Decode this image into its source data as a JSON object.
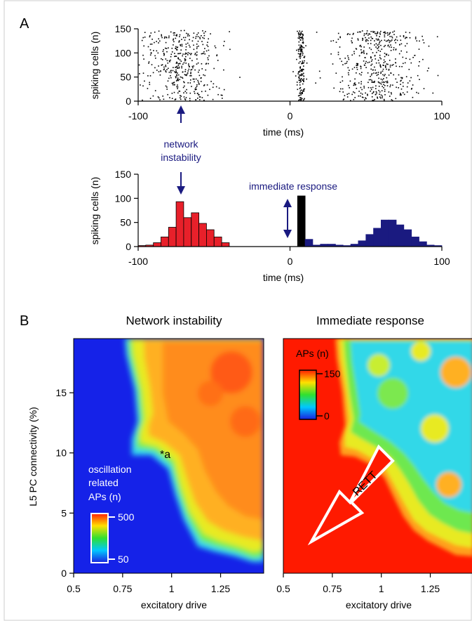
{
  "panel_labels": {
    "a": "A",
    "b": "B"
  },
  "colors": {
    "axis": "#000000",
    "annotation": "#1a1a80",
    "instability_bar": "#e8202a",
    "response_bar": "#1a1a80",
    "immediate_bar": "#000000",
    "heat_low": "#1020e0",
    "heat_high": "#ff1a00"
  },
  "annotations": {
    "network_instability_line1": "network",
    "network_instability_line2": "instability",
    "immediate_response": "immediate response",
    "point_a": "*a",
    "oscillation_line1": "oscillation",
    "oscillation_line2": "related",
    "oscillation_line3": "APs (n)",
    "aps_label": "APs (n)",
    "rett": "RETT"
  },
  "chart_data": [
    {
      "id": "raster",
      "type": "scatter",
      "xlabel": "time (ms)",
      "ylabel": "spiking cells (n)",
      "xlim": [
        -100,
        100
      ],
      "ylim": [
        0,
        150
      ],
      "xticks": [
        "-100",
        "0",
        "100"
      ],
      "yticks": [
        "0",
        "50",
        "100",
        "150"
      ],
      "groups": [
        {
          "x_center": -72,
          "x_sd": 12,
          "count": 430
        },
        {
          "x_center": 7,
          "x_sd": 1.2,
          "count": 170
        },
        {
          "x_center": 58,
          "x_sd": 14,
          "count": 480
        }
      ]
    },
    {
      "id": "histogram",
      "type": "bar",
      "xlabel": "time (ms)",
      "ylabel": "spiking cells (n)",
      "xlim": [
        -100,
        100
      ],
      "ylim": [
        0,
        150
      ],
      "xticks": [
        "-100",
        "0",
        "100"
      ],
      "yticks": [
        "0",
        "50",
        "100",
        "150"
      ],
      "bin_width": 5,
      "series": [
        {
          "group": "instability",
          "x": [
            -100,
            -95,
            -90,
            -85,
            -80,
            -75,
            -70,
            -65,
            -60,
            -55,
            -50,
            -45
          ],
          "values": [
            2,
            3,
            8,
            20,
            40,
            93,
            60,
            70,
            48,
            35,
            20,
            8
          ]
        },
        {
          "group": "immediate",
          "x": [
            5
          ],
          "values": [
            105
          ]
        },
        {
          "group": "response",
          "x": [
            10,
            15,
            20,
            25,
            30,
            35,
            40,
            45,
            50,
            55,
            60,
            65,
            70,
            75,
            80,
            85,
            90,
            95
          ],
          "values": [
            15,
            3,
            5,
            5,
            3,
            2,
            5,
            12,
            25,
            38,
            55,
            55,
            45,
            35,
            20,
            10,
            3,
            2
          ]
        }
      ]
    },
    {
      "id": "heatmap_instability",
      "type": "heatmap",
      "title": "Network instability",
      "xlabel": "excitatory drive",
      "ylabel": "L5 PC connectivity (%)",
      "xlim": [
        0.5,
        1.47
      ],
      "ylim": [
        0,
        19.5
      ],
      "xticks": [
        "0.5",
        "0.75",
        "1",
        "1.25"
      ],
      "yticks": [
        "0",
        "5",
        "10",
        "15"
      ],
      "colorbar": {
        "min": "50",
        "max": "500"
      }
    },
    {
      "id": "heatmap_response",
      "type": "heatmap",
      "title": "Immediate response",
      "xlabel": "excitatory drive",
      "xlim": [
        0.5,
        1.47
      ],
      "ylim": [
        0,
        19.5
      ],
      "xticks": [
        "0.5",
        "0.75",
        "1",
        "1.25"
      ],
      "colorbar": {
        "min": "0",
        "max": "150"
      }
    }
  ]
}
